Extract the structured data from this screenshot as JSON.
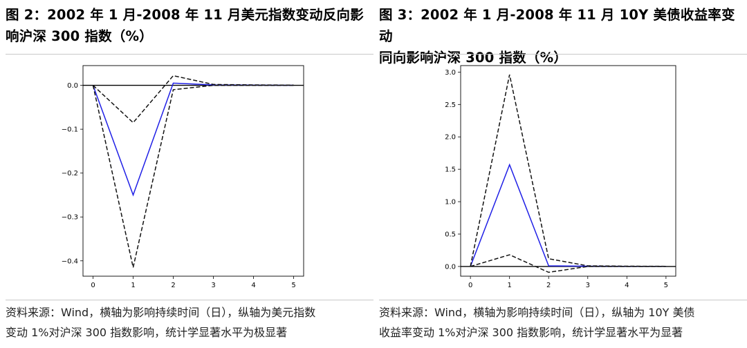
{
  "left": {
    "title_line1": "图 2：2002 年 1 月-2008 年 11 月美元指数变动反向影",
    "title_line2": "响沪深 300 指数（%）",
    "note_line1": "资料来源：Wind，横轴为影响持续时间（日），纵轴为美元指数",
    "note_line2": "变动 1%对沪深 300 指数影响，统计学显著水平为极显著"
  },
  "right": {
    "title_line1": "图 3：2002 年 1 月-2008 年 11 月 10Y 美债收益率变动",
    "title_line2": "同向影响沪深 300 指数（%）",
    "note_line1": "资料来源：Wind，横轴为影响持续时间（日），纵轴为 10Y 美债",
    "note_line2": "收益率变动 1%对沪深 300 指数影响，统计学显著水平为显著"
  },
  "chart_data": [
    {
      "type": "line",
      "x": [
        0,
        1,
        2,
        3,
        4,
        5
      ],
      "xlim": [
        -0.25,
        5.25
      ],
      "ylim": [
        -0.435,
        0.045
      ],
      "xticks": [
        "0",
        "1",
        "2",
        "3",
        "4",
        "5"
      ],
      "yticks": [
        0.0,
        -0.1,
        -0.2,
        -0.3,
        -0.4
      ],
      "ytick_labels": [
        "0.0",
        "−0.1",
        "−0.2",
        "−0.3",
        "−0.4"
      ],
      "zero_line": 0,
      "series": [
        {
          "values": [
            0,
            -0.25,
            0.005,
            0.001,
            0.0005,
            0.0002
          ],
          "color": "#1f1fe6",
          "style": "solid"
        },
        {
          "values": [
            0,
            -0.085,
            0.022,
            0.002,
            0.001,
            0.0005
          ],
          "color": "#111111",
          "style": "dashed"
        },
        {
          "values": [
            0,
            -0.415,
            -0.01,
            0.0,
            0.0,
            0.0
          ],
          "color": "#111111",
          "style": "dashed"
        }
      ]
    },
    {
      "type": "line",
      "x": [
        0,
        1,
        2,
        3,
        4,
        5
      ],
      "xlim": [
        -0.25,
        5.25
      ],
      "ylim": [
        -0.15,
        3.1
      ],
      "xticks": [
        "0",
        "1",
        "2",
        "3",
        "4",
        "5"
      ],
      "yticks": [
        0.0,
        0.5,
        1.0,
        1.5,
        2.0,
        2.5,
        3.0
      ],
      "ytick_labels": [
        "0.0",
        "0.5",
        "1.0",
        "1.5",
        "2.0",
        "2.5",
        "3.0"
      ],
      "zero_line": 0,
      "series": [
        {
          "values": [
            0,
            1.57,
            0.01,
            0.005,
            0.002,
            0.001
          ],
          "color": "#1f1fe6",
          "style": "solid"
        },
        {
          "values": [
            0,
            2.96,
            0.12,
            0.01,
            0.005,
            0.002
          ],
          "color": "#111111",
          "style": "dashed"
        },
        {
          "values": [
            0,
            0.18,
            -0.09,
            0.0,
            0.0,
            0.0
          ],
          "color": "#111111",
          "style": "dashed"
        }
      ]
    }
  ]
}
